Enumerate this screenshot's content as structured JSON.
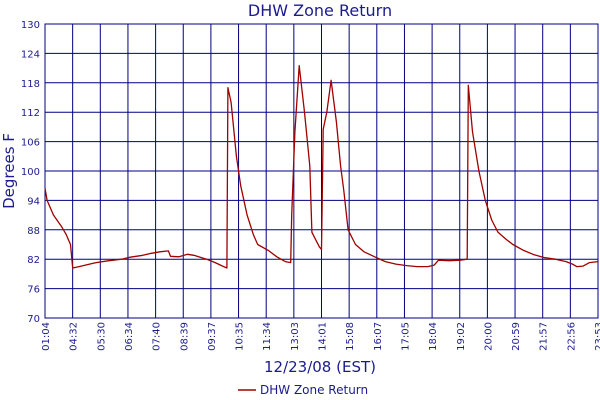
{
  "chart_data": {
    "type": "line",
    "title": "DHW Zone Return",
    "xlabel": "12/23/08 (EST)",
    "ylabel": "Degrees F",
    "ylim": [
      70,
      130
    ],
    "yticks": [
      70,
      76,
      82,
      88,
      94,
      100,
      106,
      112,
      118,
      124,
      130
    ],
    "xticks": [
      "01:04",
      "04:32",
      "05:30",
      "06:34",
      "07:40",
      "08:39",
      "09:37",
      "10:35",
      "11:34",
      "13:03",
      "14:01",
      "15:08",
      "16:07",
      "17:05",
      "18:04",
      "19:02",
      "20:00",
      "20:59",
      "21:57",
      "22:56",
      "23:53"
    ],
    "grid": true,
    "legend_position": "bottom-center",
    "colors": {
      "line": "#a00000",
      "grid": "#000080",
      "text": "#1b1b8f"
    },
    "series": [
      {
        "name": "DHW Zone Return",
        "points": [
          [
            0.0,
            96.5
          ],
          [
            0.1,
            94.0
          ],
          [
            0.4,
            91.0
          ],
          [
            0.8,
            88.5
          ],
          [
            1.0,
            87.0
          ],
          [
            1.2,
            85.0
          ],
          [
            1.3,
            80.2
          ],
          [
            1.6,
            80.5
          ],
          [
            2.0,
            80.9
          ],
          [
            2.4,
            81.3
          ],
          [
            3.0,
            81.7
          ],
          [
            3.6,
            82.0
          ],
          [
            4.0,
            82.4
          ],
          [
            4.6,
            82.8
          ],
          [
            5.0,
            83.2
          ],
          [
            5.4,
            83.5
          ],
          [
            5.8,
            83.7
          ],
          [
            5.9,
            82.6
          ],
          [
            6.3,
            82.5
          ],
          [
            6.7,
            83.0
          ],
          [
            7.0,
            82.8
          ],
          [
            7.6,
            82.0
          ],
          [
            8.0,
            81.3
          ],
          [
            8.4,
            80.5
          ],
          [
            8.55,
            80.2
          ],
          [
            8.6,
            117.0
          ],
          [
            8.75,
            114.0
          ],
          [
            9.0,
            103.0
          ],
          [
            9.2,
            97.0
          ],
          [
            9.5,
            91.0
          ],
          [
            9.8,
            87.0
          ],
          [
            10.0,
            85.0
          ],
          [
            10.5,
            83.8
          ],
          [
            10.9,
            82.5
          ],
          [
            11.3,
            81.5
          ],
          [
            11.55,
            81.3
          ],
          [
            11.6,
            91.0
          ],
          [
            11.75,
            108.0
          ],
          [
            11.95,
            121.5
          ],
          [
            12.2,
            112.0
          ],
          [
            12.45,
            101.0
          ],
          [
            12.55,
            87.5
          ],
          [
            12.9,
            84.5
          ],
          [
            13.0,
            84.0
          ],
          [
            13.08,
            108.5
          ],
          [
            13.25,
            112.0
          ],
          [
            13.45,
            118.5
          ],
          [
            13.7,
            110.0
          ],
          [
            13.9,
            101.0
          ],
          [
            14.05,
            96.0
          ],
          [
            14.25,
            88.0
          ],
          [
            14.6,
            85.0
          ],
          [
            15.0,
            83.5
          ],
          [
            15.5,
            82.5
          ],
          [
            16.0,
            81.5
          ],
          [
            16.5,
            81.0
          ],
          [
            17.0,
            80.7
          ],
          [
            17.5,
            80.5
          ],
          [
            18.0,
            80.5
          ],
          [
            18.3,
            80.8
          ],
          [
            18.5,
            81.8
          ],
          [
            19.0,
            81.7
          ],
          [
            19.5,
            81.8
          ],
          [
            19.85,
            82.0
          ],
          [
            19.9,
            117.5
          ],
          [
            20.1,
            108.0
          ],
          [
            20.4,
            100.0
          ],
          [
            20.7,
            94.0
          ],
          [
            21.0,
            90.0
          ],
          [
            21.3,
            87.5
          ],
          [
            21.7,
            86.0
          ],
          [
            22.0,
            85.0
          ],
          [
            22.5,
            83.8
          ],
          [
            23.0,
            82.9
          ],
          [
            23.5,
            82.3
          ],
          [
            24.0,
            82.0
          ],
          [
            24.5,
            81.5
          ],
          [
            24.8,
            81.0
          ],
          [
            25.0,
            80.5
          ],
          [
            25.3,
            80.6
          ],
          [
            25.6,
            81.3
          ],
          [
            26.0,
            81.5
          ]
        ]
      }
    ]
  }
}
